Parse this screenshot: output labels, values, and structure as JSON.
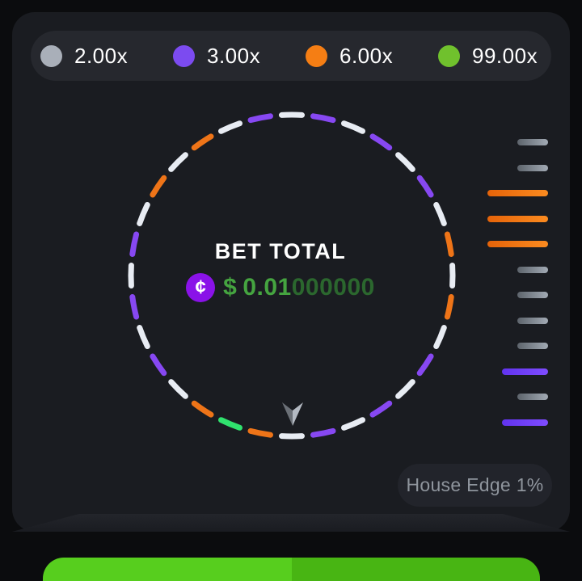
{
  "legend": {
    "items": [
      {
        "label": "2.00x",
        "color": "#a9afb9"
      },
      {
        "label": "3.00x",
        "color": "#7c4bf0"
      },
      {
        "label": "6.00x",
        "color": "#f57e14"
      },
      {
        "label": "99.00x",
        "color": "#70c12d"
      }
    ]
  },
  "wheel": {
    "center_title": "BET TOTAL",
    "coin_symbol": "¢",
    "coin_color": "#8a12e8",
    "bet_amount_currency": "$",
    "bet_amount_main": "0.01",
    "bet_amount_trailing": "000000",
    "segment_multipliers": {
      "white": "2.00x",
      "purple": "3.00x",
      "orange": "6.00x",
      "green": "99.00x"
    },
    "segment_colors": {
      "white": "#e8ecf3",
      "purple": "#8748f2",
      "orange": "#ee7418",
      "green": "#30e26e"
    },
    "segments": [
      "white",
      "purple",
      "white",
      "purple",
      "white",
      "purple",
      "white",
      "orange",
      "white",
      "orange",
      "white",
      "purple",
      "white",
      "purple",
      "white",
      "purple",
      "white",
      "orange",
      "green",
      "orange",
      "white",
      "purple",
      "white",
      "purple",
      "white",
      "purple",
      "white",
      "orange",
      "white",
      "orange",
      "white",
      "purple"
    ],
    "pointer": {
      "left_color": "#6b7077",
      "right_color": "#b4bac3"
    }
  },
  "history": {
    "bar_colors": {
      "gray": [
        "#5d646c",
        "#a2aab4"
      ],
      "orange": [
        "#e56309",
        "#fb8b20"
      ],
      "purple": [
        "#6133ee",
        "#7f4cff"
      ]
    },
    "bar_widths": {
      "gray": 38,
      "orange": 75,
      "purple": 57
    },
    "bars": [
      {
        "color": "gray",
        "multiplier": "2.00x"
      },
      {
        "color": "gray",
        "multiplier": "2.00x"
      },
      {
        "color": "orange",
        "multiplier": "6.00x"
      },
      {
        "color": "orange",
        "multiplier": "6.00x"
      },
      {
        "color": "orange",
        "multiplier": "6.00x"
      },
      {
        "color": "gray",
        "multiplier": "2.00x"
      },
      {
        "color": "gray",
        "multiplier": "2.00x"
      },
      {
        "color": "gray",
        "multiplier": "2.00x"
      },
      {
        "color": "gray",
        "multiplier": "2.00x"
      },
      {
        "color": "purple",
        "multiplier": "3.00x"
      },
      {
        "color": "gray",
        "multiplier": "2.00x"
      },
      {
        "color": "purple",
        "multiplier": "3.00x"
      }
    ]
  },
  "house_edge_label": "House Edge 1%",
  "bet_button": {
    "color_left": "#57ce1e",
    "color_right": "#48b513"
  }
}
